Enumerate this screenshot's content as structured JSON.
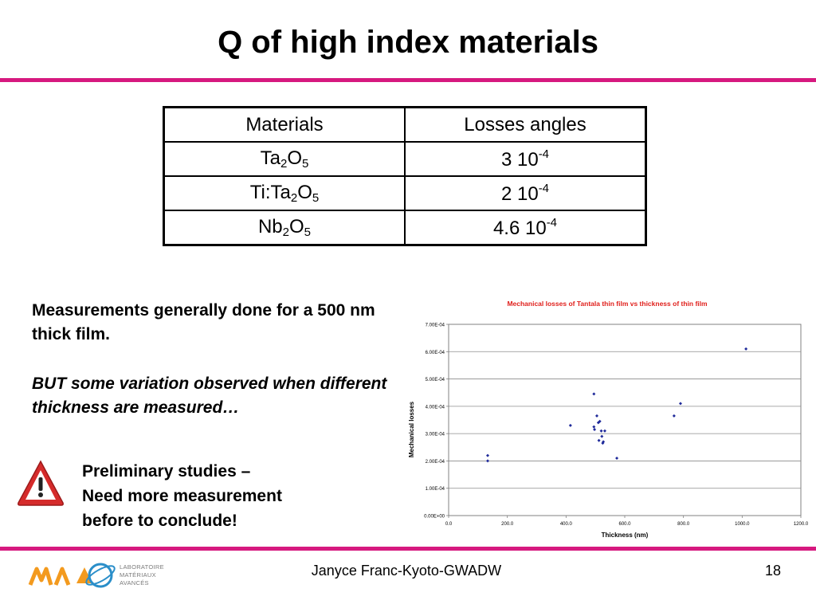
{
  "title": "Q of high index materials",
  "table": {
    "headers": [
      "Materials",
      "Losses angles"
    ],
    "rows": [
      {
        "material_base": "Ta",
        "material_sub1": "2",
        "material_mid": "O",
        "material_sub2": "5",
        "loss_base": "3 10",
        "loss_exp": "-4"
      },
      {
        "material_base": "Ti:Ta",
        "material_sub1": "2",
        "material_mid": "O",
        "material_sub2": "5",
        "loss_base": "2 10",
        "loss_exp": "-4"
      },
      {
        "material_base": "Nb",
        "material_sub1": "2",
        "material_mid": "O",
        "material_sub2": "5",
        "loss_base": "4.6 10",
        "loss_exp": "-4"
      }
    ]
  },
  "text": {
    "measurements": "Measurements generally done for a 500 nm thick film.",
    "variation": "BUT some variation observed when different thickness are measured…",
    "preliminary_line1": "Preliminary studies –",
    "preliminary_line2": "Need more measurement",
    "preliminary_line3": "before to conclude!"
  },
  "chart_data": {
    "type": "scatter",
    "title": "Mechanical losses of Tantala thin film vs thickness of thin film",
    "xlabel": "Thickness (nm)",
    "ylabel": "Mechanical losses",
    "xlim": [
      0,
      1200
    ],
    "ylim": [
      0,
      0.0007
    ],
    "x_ticks": [
      "0.0",
      "200.0",
      "400.0",
      "600.0",
      "800.0",
      "1000.0",
      "1200.0"
    ],
    "y_ticks": [
      "0.00E+00",
      "1.00E-04",
      "2.00E-04",
      "3.00E-04",
      "4.00E-04",
      "5.00E-04",
      "6.00E-04",
      "7.00E-04"
    ],
    "grid": true,
    "marker_color": "#1f2a9a",
    "series": [
      {
        "points": [
          [
            133,
            0.00022
          ],
          [
            133,
            0.0002
          ],
          [
            415,
            0.00033
          ],
          [
            495,
            0.000445
          ],
          [
            495,
            0.000325
          ],
          [
            497,
            0.000315
          ],
          [
            505,
            0.000365
          ],
          [
            510,
            0.00034
          ],
          [
            515,
            0.000345
          ],
          [
            512,
            0.000275
          ],
          [
            520,
            0.00031
          ],
          [
            522,
            0.00029
          ],
          [
            525,
            0.000265
          ],
          [
            527,
            0.00027
          ],
          [
            532,
            0.00031
          ],
          [
            573,
            0.00021
          ],
          [
            768,
            0.000365
          ],
          [
            790,
            0.00041
          ],
          [
            1013,
            0.00061
          ]
        ]
      }
    ]
  },
  "footer": {
    "author": "Janyce Franc-Kyoto-GWADW",
    "page": "18",
    "lab_line1": "LABORATOIRE",
    "lab_line2": "MATÉRIAUX",
    "lab_line3": "AVANCÉS"
  },
  "colors": {
    "accent": "#d6197f",
    "warning_red": "#d52b2b",
    "logo_orange": "#f39a1e",
    "logo_blue": "#2a8ec9"
  }
}
